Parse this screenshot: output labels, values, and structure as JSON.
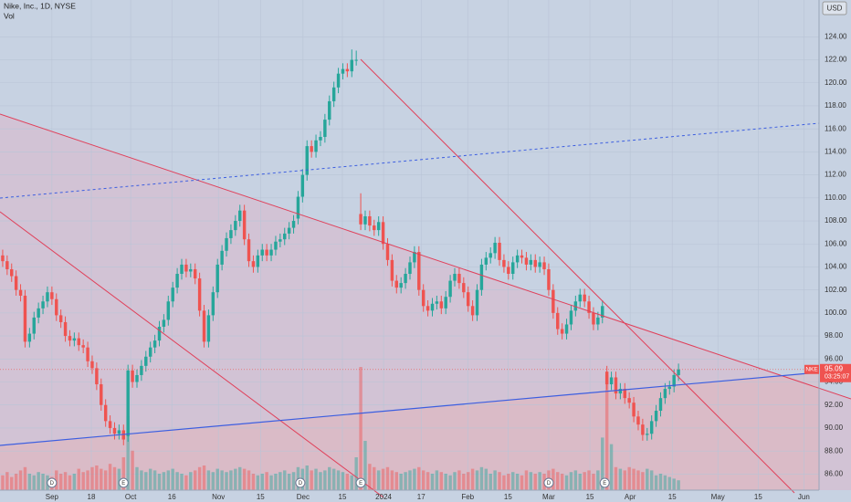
{
  "chart_data": {
    "type": "candlestick",
    "title": "Nike, Inc., 1D, NYSE",
    "volume_label": "Vol",
    "currency": "USD",
    "symbol_tag": "NKE",
    "last_label": "95.09",
    "countdown": "03:25:07",
    "up_color": "#26a69a",
    "down_color": "#ef5350",
    "xlim": [
      -0.6,
      182.4
    ],
    "ylim": [
      84.6,
      127.2
    ],
    "xticks": [
      {
        "value": 11.0,
        "label": "Sep"
      },
      {
        "value": 19.8,
        "label": "18"
      },
      {
        "value": 28.6,
        "label": "Oct"
      },
      {
        "value": 37.8,
        "label": "16"
      },
      {
        "value": 48.2,
        "label": "Nov"
      },
      {
        "value": 57.6,
        "label": "15"
      },
      {
        "value": 67.1,
        "label": "Dec"
      },
      {
        "value": 75.9,
        "label": "15"
      },
      {
        "value": 85.1,
        "label": "2024"
      },
      {
        "value": 93.5,
        "label": "17"
      },
      {
        "value": 103.9,
        "label": "Feb"
      },
      {
        "value": 112.9,
        "label": "15"
      },
      {
        "value": 122.0,
        "label": "Mar"
      },
      {
        "value": 131.2,
        "label": "15"
      },
      {
        "value": 140.2,
        "label": "Apr"
      },
      {
        "value": 149.6,
        "label": "15"
      },
      {
        "value": 159.8,
        "label": "May"
      },
      {
        "value": 168.8,
        "label": "15"
      },
      {
        "value": 179.0,
        "label": "Jun"
      }
    ],
    "yticks": [
      {
        "value": 86,
        "label": "86.00"
      },
      {
        "value": 88,
        "label": "88.00"
      },
      {
        "value": 90,
        "label": "90.00"
      },
      {
        "value": 92,
        "label": "92.00"
      },
      {
        "value": 94,
        "label": "94.00"
      },
      {
        "value": 96,
        "label": "96.00"
      },
      {
        "value": 98,
        "label": "98.00"
      },
      {
        "value": 100,
        "label": "100.00"
      },
      {
        "value": 102,
        "label": "102.00"
      },
      {
        "value": 104,
        "label": "104.00"
      },
      {
        "value": 106,
        "label": "106.00"
      },
      {
        "value": 108,
        "label": "108.00"
      },
      {
        "value": 110,
        "label": "110.00"
      },
      {
        "value": 112,
        "label": "112.00"
      },
      {
        "value": 114,
        "label": "114.00"
      },
      {
        "value": 116,
        "label": "116.00"
      },
      {
        "value": 118,
        "label": "118.00"
      },
      {
        "value": 120,
        "label": "120.00"
      },
      {
        "value": 122,
        "label": "122.00"
      },
      {
        "value": 124,
        "label": "124.00"
      }
    ],
    "events": [
      {
        "label": "D",
        "x": 11
      },
      {
        "label": "E",
        "x": 27
      },
      {
        "label": "D",
        "x": 66.5
      },
      {
        "label": "E",
        "x": 80
      },
      {
        "label": "D",
        "x": 122
      },
      {
        "label": "E",
        "x": 134.5
      }
    ],
    "candles": [
      [
        105,
        105.5,
        104,
        104.5
      ],
      [
        104.5,
        105,
        103.3,
        103.8
      ],
      [
        103.8,
        104.3,
        102.7,
        103.2
      ],
      [
        103.2,
        103.7,
        101.5,
        102
      ],
      [
        102,
        102.5,
        101,
        101.5
      ],
      [
        101.5,
        102,
        97,
        97.5
      ],
      [
        97.5,
        98.7,
        97,
        98.2
      ],
      [
        98.2,
        100.1,
        97.7,
        99.6
      ],
      [
        99.6,
        100.9,
        99.1,
        100.4
      ],
      [
        100.4,
        101.5,
        99.9,
        101
      ],
      [
        101,
        102.3,
        100.5,
        101.8
      ],
      [
        101.8,
        102.3,
        100.7,
        101.2
      ],
      [
        101.2,
        101.7,
        99.3,
        99.8
      ],
      [
        99.8,
        100.3,
        98.7,
        99.2
      ],
      [
        99.2,
        99.7,
        97.5,
        98
      ],
      [
        98,
        98.5,
        97.1,
        97.6
      ],
      [
        97.6,
        98.3,
        97.1,
        97.8
      ],
      [
        97.8,
        98.3,
        96.7,
        97.2
      ],
      [
        97.2,
        97.7,
        96.5,
        97
      ],
      [
        97,
        97.5,
        95.3,
        95.8
      ],
      [
        95.8,
        96.3,
        94.7,
        95.2
      ],
      [
        95.2,
        95.7,
        93.3,
        93.8
      ],
      [
        93.8,
        94.3,
        91.5,
        92
      ],
      [
        92,
        92.5,
        90.1,
        90.6
      ],
      [
        90.6,
        91.1,
        89.5,
        90
      ],
      [
        90,
        90.5,
        89,
        89.5
      ],
      [
        89.5,
        90.3,
        89,
        89.8
      ],
      [
        89.8,
        90.3,
        88.5,
        89
      ],
      [
        89.3,
        95.5,
        88.8,
        95
      ],
      [
        95,
        95.5,
        93.5,
        94
      ],
      [
        94,
        95.1,
        93.5,
        94.6
      ],
      [
        94.6,
        95.9,
        94.1,
        95.4
      ],
      [
        95.4,
        96.7,
        94.9,
        96.2
      ],
      [
        96.2,
        97.5,
        95.7,
        97
      ],
      [
        97,
        98.1,
        96.5,
        97.6
      ],
      [
        97.6,
        99.3,
        97.1,
        98.8
      ],
      [
        98.8,
        99.9,
        98.3,
        99.4
      ],
      [
        99.4,
        101.5,
        98.9,
        101
      ],
      [
        101,
        102.7,
        100.5,
        102.2
      ],
      [
        102.2,
        103.9,
        101.7,
        103.4
      ],
      [
        103.4,
        104.7,
        102.9,
        104.2
      ],
      [
        104.2,
        104.7,
        103.1,
        103.6
      ],
      [
        103.6,
        104.3,
        103.1,
        103.8
      ],
      [
        103.8,
        104.3,
        102.5,
        103
      ],
      [
        103,
        103.5,
        99.7,
        100.2
      ],
      [
        100.2,
        100.7,
        97,
        97.5
      ],
      [
        97.5,
        100.3,
        97,
        99.8
      ],
      [
        99.8,
        102.3,
        99.3,
        101.8
      ],
      [
        101.8,
        104.7,
        101.3,
        104.2
      ],
      [
        104.2,
        105.9,
        103.7,
        105.4
      ],
      [
        105.4,
        107,
        104.9,
        106.5
      ],
      [
        106.5,
        107.7,
        106,
        107.2
      ],
      [
        107.2,
        108.5,
        106.7,
        108
      ],
      [
        108,
        109.4,
        107.5,
        108.9
      ],
      [
        108.9,
        109.4,
        105.9,
        106.4
      ],
      [
        106.4,
        106.9,
        104,
        104.5
      ],
      [
        104.5,
        105,
        103.5,
        104
      ],
      [
        104,
        105.5,
        103.5,
        105
      ],
      [
        105,
        106,
        104.5,
        105.5
      ],
      [
        105.5,
        106,
        104.5,
        105
      ],
      [
        105,
        106,
        104.5,
        105.5
      ],
      [
        105.5,
        106.7,
        105,
        106.2
      ],
      [
        106.2,
        106.9,
        105.7,
        106.4
      ],
      [
        106.4,
        107.4,
        105.9,
        106.9
      ],
      [
        106.9,
        107.9,
        106.4,
        107.4
      ],
      [
        107.4,
        108.5,
        106.9,
        108
      ],
      [
        108.2,
        110.6,
        107.7,
        110.1
      ],
      [
        110.1,
        112.5,
        109.6,
        112
      ],
      [
        112,
        115,
        111.5,
        114.5
      ],
      [
        114.5,
        115,
        113.5,
        114
      ],
      [
        114,
        115.5,
        113.5,
        115
      ],
      [
        115,
        115.8,
        114.5,
        115.3
      ],
      [
        115.3,
        117.3,
        114.8,
        116.8
      ],
      [
        116.8,
        118.9,
        116.3,
        118.4
      ],
      [
        118.4,
        120.1,
        117.9,
        119.6
      ],
      [
        119.6,
        121.3,
        119.1,
        120.8
      ],
      [
        120.8,
        121.7,
        120.3,
        121.2
      ],
      [
        121.2,
        121.7,
        120.5,
        121
      ],
      [
        121,
        122.9,
        120.5,
        122
      ],
      [
        122,
        122.8,
        121.5,
        122
      ],
      [
        108.6,
        110.4,
        107.2,
        107.7
      ],
      [
        107.7,
        108.9,
        107.2,
        108.4
      ],
      [
        108.4,
        108.9,
        107.1,
        107.6
      ],
      [
        107.6,
        108.1,
        106.7,
        107.2
      ],
      [
        107.2,
        108.4,
        106.7,
        107.9
      ],
      [
        107.9,
        108.4,
        105.5,
        106
      ],
      [
        106,
        106.5,
        104.1,
        104.6
      ],
      [
        104.6,
        105.1,
        102.3,
        102.8
      ],
      [
        102.8,
        103.3,
        101.7,
        102.2
      ],
      [
        102.2,
        103.1,
        101.7,
        102.6
      ],
      [
        102.6,
        103.9,
        102.1,
        103.4
      ],
      [
        103.4,
        104.9,
        102.9,
        104.4
      ],
      [
        104.4,
        105.8,
        103.9,
        105.3
      ],
      [
        105.3,
        105.8,
        101.5,
        102
      ],
      [
        102,
        102.5,
        100.1,
        100.6
      ],
      [
        100.6,
        101.1,
        99.7,
        100.2
      ],
      [
        100.2,
        101.3,
        99.7,
        100.8
      ],
      [
        100.8,
        101.5,
        100.3,
        101
      ],
      [
        101,
        101.5,
        99.9,
        100.4
      ],
      [
        100.4,
        101.9,
        99.9,
        101.4
      ],
      [
        101.4,
        103.3,
        100.9,
        102.8
      ],
      [
        102.8,
        103.9,
        102.3,
        103.4
      ],
      [
        103.4,
        103.9,
        102.1,
        102.6
      ],
      [
        102.6,
        103.1,
        101.3,
        101.8
      ],
      [
        101.8,
        102.3,
        100.1,
        100.6
      ],
      [
        100.6,
        101.1,
        99.3,
        99.8
      ],
      [
        99.8,
        102.5,
        99.3,
        102
      ],
      [
        102,
        104.7,
        101.5,
        104.2
      ],
      [
        104.2,
        105.3,
        103.7,
        104.8
      ],
      [
        104.8,
        105.7,
        104.3,
        105.2
      ],
      [
        105.2,
        106.6,
        104.7,
        106.1
      ],
      [
        106.1,
        106.6,
        104.1,
        104.6
      ],
      [
        104.6,
        105.1,
        103.5,
        104
      ],
      [
        104,
        104.5,
        102.9,
        103.4
      ],
      [
        103.4,
        104.9,
        102.9,
        104.4
      ],
      [
        104.4,
        105.5,
        103.9,
        105
      ],
      [
        105,
        105.5,
        104.3,
        104.8
      ],
      [
        104.8,
        105.3,
        103.7,
        104.2
      ],
      [
        104.2,
        105.1,
        103.7,
        104.6
      ],
      [
        104.6,
        105.1,
        103.5,
        104
      ],
      [
        104,
        104.9,
        103.5,
        104.4
      ],
      [
        104.4,
        104.9,
        103.3,
        103.8
      ],
      [
        103.8,
        104.3,
        101.5,
        102
      ],
      [
        102,
        102.5,
        99.5,
        100
      ],
      [
        100,
        100.5,
        98.1,
        98.6
      ],
      [
        98.6,
        99.1,
        97.7,
        98.2
      ],
      [
        98.2,
        99.5,
        97.7,
        99
      ],
      [
        99,
        100.7,
        98.5,
        100.2
      ],
      [
        100.2,
        101.5,
        99.7,
        101
      ],
      [
        101,
        102.1,
        100.5,
        101.6
      ],
      [
        101.6,
        102.1,
        100.5,
        101
      ],
      [
        101,
        101.5,
        99.5,
        100
      ],
      [
        100,
        100.5,
        98.5,
        99
      ],
      [
        99,
        100.1,
        98.5,
        99.6
      ],
      [
        99.6,
        101.1,
        99.1,
        100.6
      ],
      [
        94.9,
        95.4,
        93.3,
        93.8
      ],
      [
        93.8,
        94.9,
        93.3,
        94.4
      ],
      [
        94.4,
        94.9,
        92.5,
        93
      ],
      [
        93,
        93.9,
        92.5,
        93.4
      ],
      [
        93.4,
        93.9,
        92.1,
        92.6
      ],
      [
        92.6,
        93.1,
        91.7,
        92.2
      ],
      [
        92.2,
        92.7,
        90.5,
        91
      ],
      [
        91,
        91.5,
        89.8,
        90.3
      ],
      [
        90.3,
        90.8,
        88.9,
        89.4
      ],
      [
        89.4,
        90,
        88.9,
        89.5
      ],
      [
        89.5,
        91.1,
        89,
        90.6
      ],
      [
        90.6,
        92,
        90.1,
        91.5
      ],
      [
        91.5,
        93.1,
        91,
        92.6
      ],
      [
        92.6,
        93.9,
        92.1,
        93.4
      ],
      [
        93.4,
        94.1,
        92.9,
        93.6
      ],
      [
        93.6,
        95.1,
        93.1,
        94.6
      ],
      [
        94.6,
        95.6,
        94.1,
        95.09
      ]
    ],
    "volume": [
      9,
      11,
      8,
      10,
      12,
      14,
      10,
      9,
      11,
      10,
      9,
      8,
      12,
      10,
      11,
      9,
      10,
      13,
      11,
      12,
      14,
      15,
      13,
      12,
      16,
      14,
      13,
      20,
      45,
      24,
      14,
      12,
      11,
      13,
      12,
      10,
      11,
      12,
      13,
      11,
      10,
      9,
      11,
      12,
      14,
      15,
      12,
      11,
      13,
      12,
      11,
      12,
      13,
      14,
      13,
      12,
      10,
      9,
      10,
      11,
      9,
      10,
      11,
      12,
      10,
      11,
      14,
      13,
      15,
      12,
      13,
      11,
      12,
      14,
      13,
      12,
      11,
      10,
      9,
      20,
      75,
      30,
      16,
      14,
      12,
      13,
      14,
      12,
      11,
      10,
      11,
      12,
      13,
      14,
      12,
      11,
      10,
      12,
      11,
      10,
      9,
      11,
      12,
      10,
      11,
      13,
      12,
      14,
      13,
      10,
      12,
      11,
      9,
      10,
      11,
      10,
      9,
      12,
      11,
      10,
      11,
      10,
      12,
      13,
      11,
      10,
      9,
      11,
      12,
      10,
      11,
      12,
      10,
      12,
      32,
      70,
      28,
      14,
      13,
      12,
      14,
      13,
      12,
      11,
      13,
      12,
      9,
      10,
      9,
      8,
      7,
      6
    ]
  }
}
